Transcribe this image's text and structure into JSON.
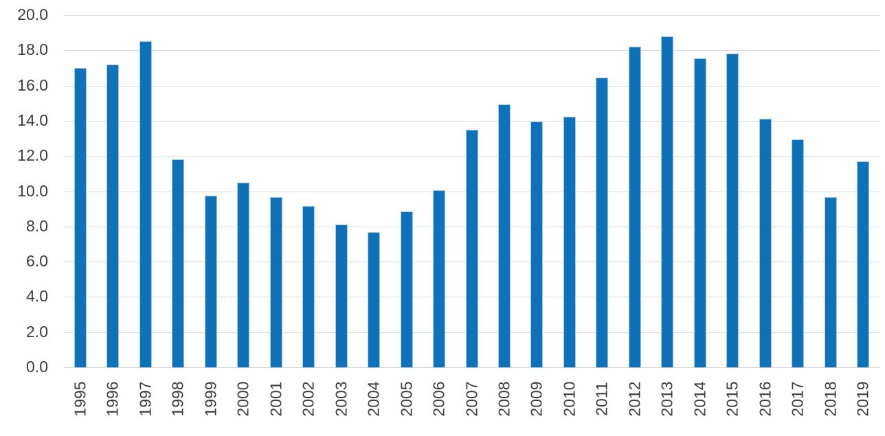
{
  "chart_data": {
    "type": "bar",
    "title": "",
    "xlabel": "",
    "ylabel": "",
    "categories": [
      "1995",
      "1996",
      "1997",
      "1998",
      "1999",
      "2000",
      "2001",
      "2002",
      "2003",
      "2004",
      "2005",
      "2006",
      "2007",
      "2008",
      "2009",
      "2010",
      "2011",
      "2012",
      "2013",
      "2014",
      "2015",
      "2016",
      "2017",
      "2018",
      "2019"
    ],
    "values": [
      17.0,
      17.2,
      18.5,
      11.8,
      9.75,
      10.5,
      9.65,
      9.15,
      8.1,
      7.7,
      8.85,
      10.05,
      13.5,
      14.95,
      13.95,
      14.25,
      16.45,
      18.2,
      18.8,
      17.55,
      17.8,
      14.1,
      12.95,
      9.65,
      11.7
    ],
    "ylim": [
      0,
      20
    ],
    "ytick_step": 2,
    "yticks": [
      "0.0",
      "2.0",
      "4.0",
      "6.0",
      "8.0",
      "10.0",
      "12.0",
      "14.0",
      "16.0",
      "18.0",
      "20.0"
    ],
    "grid": true,
    "legend": "none",
    "colors": {
      "bar": "#0e72b8",
      "bar_border": "#a5c8e8",
      "gridline": "#d9d9d9",
      "baseline": "#cfcfcf",
      "label": "#3d3d3d",
      "background": "#ffffff"
    }
  }
}
